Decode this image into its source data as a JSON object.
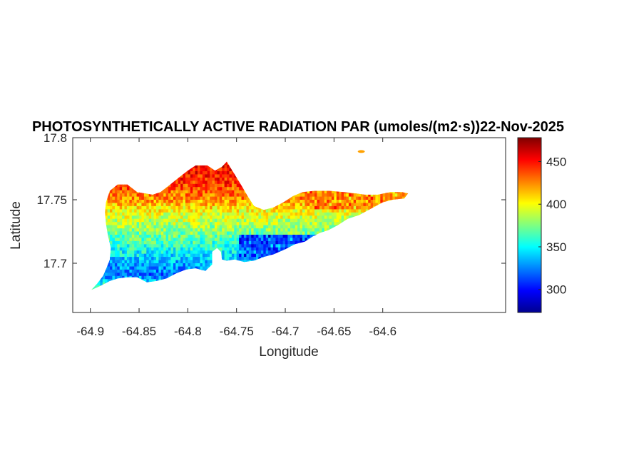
{
  "chart_data": {
    "type": "heatmap",
    "title": "PHOTOSYNTHETICALLY ACTIVE RADIATION PAR (umoles/(m2·s))22-Nov-2025",
    "xlabel": "Longitude",
    "ylabel": "Latitude",
    "xlim": [
      -64.925,
      -64.48
    ],
    "ylim": [
      17.661,
      17.8
    ],
    "xticks": [
      -64.9,
      -64.85,
      -64.8,
      -64.75,
      -64.7,
      -64.65,
      -64.6
    ],
    "xtick_labels": [
      "-64.9",
      "-64.85",
      "-64.8",
      "-64.75",
      "-64.7",
      "-64.65",
      "-64.6"
    ],
    "yticks": [
      17.7,
      17.75,
      17.8
    ],
    "ytick_labels": [
      "17.7",
      "17.75",
      "17.8"
    ],
    "colorbar": {
      "colormap": "jet",
      "clim": [
        273,
        478
      ],
      "ticks": [
        300,
        350,
        400,
        450
      ],
      "tick_labels": [
        "300",
        "350",
        "400",
        "450"
      ]
    },
    "grid": false,
    "grid_lon": [
      -64.9,
      -64.89,
      -64.88,
      -64.87,
      -64.86,
      -64.85,
      -64.84,
      -64.83,
      -64.82,
      -64.81,
      -64.8,
      -64.79,
      -64.78,
      -64.77,
      -64.76,
      -64.75,
      -64.74,
      -64.73,
      -64.72,
      -64.71,
      -64.7,
      -64.69,
      -64.68,
      -64.67,
      -64.66,
      -64.65,
      -64.64,
      -64.63,
      -64.62,
      -64.61,
      -64.6,
      -64.59,
      -64.58,
      -64.57
    ],
    "grid_lat": [
      17.79,
      17.78,
      17.77,
      17.76,
      17.75,
      17.74,
      17.73,
      17.72,
      17.71,
      17.7,
      17.69,
      17.68
    ],
    "par_north": 465,
    "par_south": 300,
    "par_values_note_rows": "values by latitude row (north to south) approximate",
    "par_row_means": [
      455,
      455,
      450,
      440,
      425,
      400,
      385,
      370,
      355,
      335,
      320,
      360
    ]
  }
}
